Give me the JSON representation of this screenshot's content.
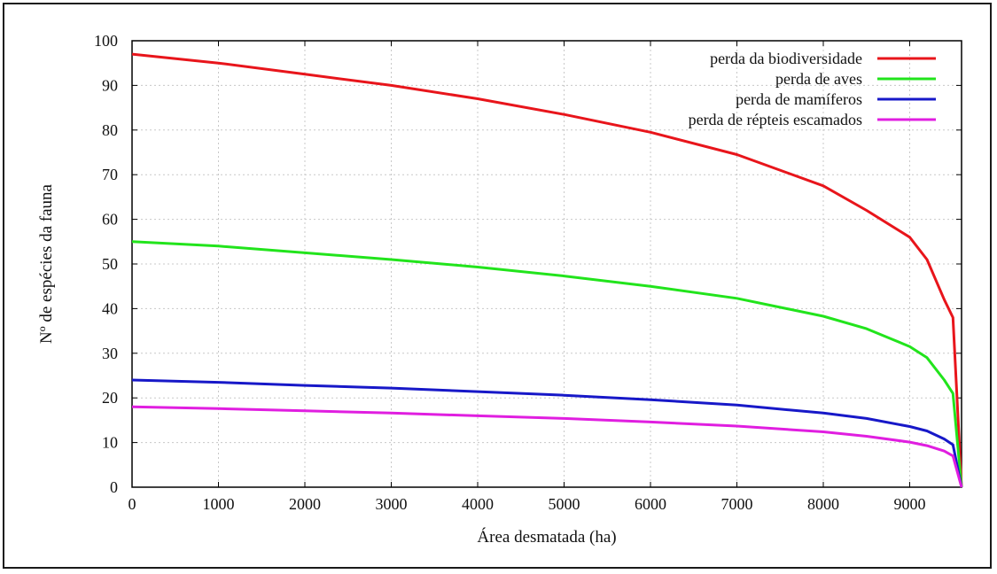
{
  "chart_data": {
    "type": "line",
    "title": "",
    "xlabel": "Área desmatada (ha)",
    "ylabel": "Nº de espécies da fauna",
    "xlim": [
      0,
      9600
    ],
    "ylim": [
      0,
      100
    ],
    "x_ticks": [
      "0",
      "1000",
      "2000",
      "3000",
      "4000",
      "5000",
      "6000",
      "7000",
      "8000",
      "9000"
    ],
    "y_ticks": [
      "0",
      "10",
      "20",
      "30",
      "40",
      "50",
      "60",
      "70",
      "80",
      "90",
      "100"
    ],
    "grid": true,
    "legend_position": "top-right",
    "series": [
      {
        "name": "perda da biodiversidade",
        "color": "#e8151b",
        "points": [
          [
            0,
            97
          ],
          [
            1000,
            95
          ],
          [
            2000,
            92.5
          ],
          [
            3000,
            90
          ],
          [
            4000,
            87
          ],
          [
            5000,
            83.5
          ],
          [
            6000,
            79.5
          ],
          [
            7000,
            74.5
          ],
          [
            8000,
            67.5
          ],
          [
            8500,
            62
          ],
          [
            9000,
            56
          ],
          [
            9200,
            51
          ],
          [
            9400,
            42
          ],
          [
            9500,
            38
          ],
          [
            9600,
            0
          ]
        ]
      },
      {
        "name": "perda de aves",
        "color": "#22e41c",
        "points": [
          [
            0,
            55
          ],
          [
            1000,
            54
          ],
          [
            2000,
            52.5
          ],
          [
            3000,
            51
          ],
          [
            4000,
            49.3
          ],
          [
            5000,
            47.3
          ],
          [
            6000,
            45
          ],
          [
            7000,
            42.3
          ],
          [
            8000,
            38.3
          ],
          [
            8500,
            35.5
          ],
          [
            9000,
            31.5
          ],
          [
            9200,
            29
          ],
          [
            9400,
            24
          ],
          [
            9500,
            21
          ],
          [
            9600,
            0
          ]
        ]
      },
      {
        "name": "perda de mamíferos",
        "color": "#1718c8",
        "points": [
          [
            0,
            24
          ],
          [
            1000,
            23.5
          ],
          [
            2000,
            22.8
          ],
          [
            3000,
            22.2
          ],
          [
            4000,
            21.4
          ],
          [
            5000,
            20.6
          ],
          [
            6000,
            19.6
          ],
          [
            7000,
            18.4
          ],
          [
            8000,
            16.6
          ],
          [
            8500,
            15.4
          ],
          [
            9000,
            13.6
          ],
          [
            9200,
            12.6
          ],
          [
            9400,
            10.8
          ],
          [
            9500,
            9.5
          ],
          [
            9600,
            0
          ]
        ]
      },
      {
        "name": "perda de répteis escamados",
        "color": "#e01ee0",
        "points": [
          [
            0,
            18
          ],
          [
            1000,
            17.6
          ],
          [
            2000,
            17.1
          ],
          [
            3000,
            16.6
          ],
          [
            4000,
            16
          ],
          [
            5000,
            15.4
          ],
          [
            6000,
            14.6
          ],
          [
            7000,
            13.7
          ],
          [
            8000,
            12.4
          ],
          [
            8500,
            11.4
          ],
          [
            9000,
            10.1
          ],
          [
            9200,
            9.3
          ],
          [
            9400,
            8.1
          ],
          [
            9500,
            7
          ],
          [
            9600,
            0
          ]
        ]
      }
    ]
  }
}
